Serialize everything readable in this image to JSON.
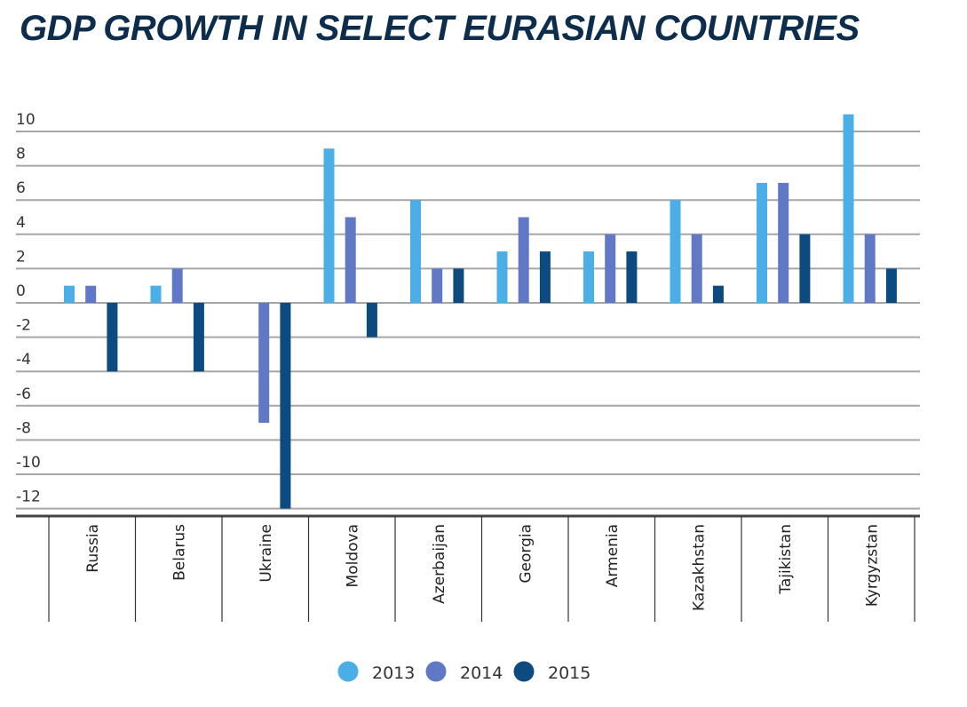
{
  "chart_data": {
    "type": "bar",
    "title": "GDP GROWTH IN SELECT EURASIAN COUNTRIES",
    "xlabel": "",
    "ylabel": "",
    "ylim": [
      -12,
      10
    ],
    "yticks": [
      10,
      8,
      6,
      4,
      2,
      0,
      -2,
      -4,
      -6,
      -8,
      -10,
      -12
    ],
    "grid": true,
    "legend_position": "bottom-center",
    "categories": [
      "Russia",
      "Belarus",
      "Ukraine",
      "Moldova",
      "Azerbaijan",
      "Georgia",
      "Armenia",
      "Kazakhstan",
      "Tajikistan",
      "Kyrgyzstan"
    ],
    "series": [
      {
        "name": "2013",
        "color": "#4baee6",
        "values": [
          1,
          1,
          0,
          9,
          6,
          3,
          3,
          6,
          7,
          11
        ]
      },
      {
        "name": "2014",
        "color": "#6178c6",
        "values": [
          1,
          2,
          -7,
          5,
          2,
          5,
          4,
          4,
          7,
          4
        ]
      },
      {
        "name": "2015",
        "color": "#0d4a80",
        "values": [
          -4,
          -4,
          -12,
          -2,
          2,
          3,
          3,
          1,
          4,
          2
        ]
      }
    ]
  },
  "colors": {
    "title": "#0c2e4c",
    "grid": "#a6a6a6",
    "axis": "#444444"
  }
}
